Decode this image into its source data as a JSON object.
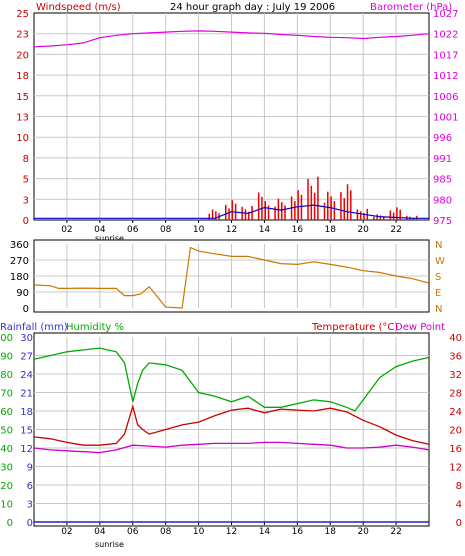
{
  "chart_data": [
    {
      "type": "line",
      "title": "24 hour graph day : July 19 2006",
      "left_axis_label": "Windspeed (m/s)",
      "right_axis_label": "Barometer (hPa)",
      "x_ticks": [
        "02",
        "04",
        "06",
        "08",
        "10",
        "12",
        "14",
        "16",
        "18",
        "20",
        "22"
      ],
      "x_extra_label": "sunrise",
      "y_left_ticks": [
        "0",
        "3",
        "5",
        "8",
        "10",
        "13",
        "15",
        "18",
        "20",
        "23",
        "25"
      ],
      "y_left_lim": [
        0,
        25
      ],
      "y_right_ticks": [
        "975",
        "980",
        "985",
        "991",
        "996",
        "1001",
        "1006",
        "1012",
        "1017",
        "1022",
        "1027"
      ],
      "y_right_lim": [
        975,
        1027
      ],
      "grid": true,
      "series": [
        {
          "name": "Barometer",
          "color": "#dd00dd",
          "axis": "right",
          "x": [
            0,
            1,
            2,
            3,
            4,
            5,
            6,
            7,
            8,
            9,
            10,
            11,
            12,
            13,
            14,
            15,
            16,
            17,
            18,
            19,
            20,
            21,
            22,
            23,
            24
          ],
          "y": [
            1018.5,
            1018.7,
            1019.0,
            1019.5,
            1020.8,
            1021.4,
            1021.8,
            1022.0,
            1022.2,
            1022.4,
            1022.5,
            1022.4,
            1022.2,
            1022.0,
            1021.9,
            1021.6,
            1021.4,
            1021.1,
            1020.9,
            1020.8,
            1020.6,
            1020.9,
            1021.1,
            1021.4,
            1021.8
          ]
        },
        {
          "name": "Wind average",
          "color": "#0000cc",
          "axis": "left",
          "x": [
            0,
            11,
            12,
            13,
            14,
            15,
            16,
            17,
            18,
            19,
            20,
            21,
            22,
            23,
            24
          ],
          "y": [
            0.2,
            0.2,
            1.0,
            0.8,
            1.5,
            1.2,
            1.6,
            1.8,
            1.5,
            1.0,
            0.7,
            0.4,
            0.3,
            0.2,
            0.2
          ]
        },
        {
          "name": "Wind gust",
          "color": "#ee0000",
          "axis": "left",
          "x": [
            11,
            12,
            13,
            14,
            15,
            16,
            17,
            18,
            19,
            20,
            21,
            22,
            23
          ],
          "y": [
            1.5,
            2.8,
            2.0,
            3.5,
            2.7,
            3.8,
            5.5,
            3.8,
            4.8,
            1.5,
            0.8,
            1.8,
            0.6
          ]
        }
      ]
    },
    {
      "type": "line",
      "title": "",
      "x_ticks": [
        "02",
        "04",
        "06",
        "08",
        "10",
        "12",
        "14",
        "16",
        "18",
        "20",
        "22"
      ],
      "y_left_ticks": [
        "0",
        "90",
        "180",
        "270",
        "360"
      ],
      "y_left_lim": [
        0,
        360
      ],
      "y_right_ticks": [
        "N",
        "E",
        "S",
        "W",
        "N"
      ],
      "grid": true,
      "series": [
        {
          "name": "Wind direction",
          "color": "#cc7700",
          "x": [
            0,
            1,
            1.5,
            2,
            3,
            4,
            5,
            5.5,
            6,
            6.5,
            7,
            8,
            9,
            9.5,
            10,
            11,
            12,
            13,
            14,
            15,
            16,
            17,
            18,
            19,
            20,
            21,
            22,
            23,
            24
          ],
          "y": [
            130,
            125,
            110,
            110,
            112,
            110,
            110,
            70,
            70,
            80,
            120,
            5,
            0,
            340,
            320,
            305,
            290,
            290,
            270,
            250,
            245,
            260,
            245,
            230,
            210,
            200,
            180,
            165,
            140
          ]
        }
      ]
    },
    {
      "type": "line",
      "title": "",
      "left_axis_labels": [
        "Rainfall (mm)",
        "Humidity %"
      ],
      "right_axis_labels": [
        "Temperature (°C)",
        "Dew Point"
      ],
      "x_ticks": [
        "02",
        "04",
        "06",
        "08",
        "10",
        "12",
        "14",
        "16",
        "18",
        "20",
        "22"
      ],
      "x_extra_label": "sunrise",
      "y_rain_ticks": [
        "0",
        "3",
        "6",
        "9",
        "12",
        "15",
        "18",
        "21",
        "24",
        "27",
        "30"
      ],
      "y_humidity_ticks": [
        "0",
        "10",
        "20",
        "30",
        "40",
        "50",
        "60",
        "70",
        "80",
        "90",
        "100"
      ],
      "y_temp_ticks": [
        "0",
        "4",
        "8",
        "12",
        "16",
        "20",
        "24",
        "28",
        "32",
        "36",
        "40"
      ],
      "y_temp_lim": [
        0,
        40
      ],
      "grid": true,
      "series": [
        {
          "name": "Humidity",
          "color": "#00aa00",
          "axis": "humidity",
          "x": [
            0,
            1,
            2,
            3,
            4,
            5,
            5.5,
            6,
            6.3,
            6.6,
            7,
            8,
            9,
            10,
            11,
            12,
            13,
            14,
            15,
            16,
            17,
            18,
            19,
            19.5,
            20,
            21,
            22,
            23,
            24
          ],
          "y": [
            88,
            90,
            92,
            93,
            94,
            92,
            86,
            65,
            75,
            82,
            86,
            85,
            82,
            70,
            68,
            65,
            68,
            62,
            62,
            64,
            66,
            65,
            62,
            60,
            66,
            78,
            84,
            87,
            89
          ]
        },
        {
          "name": "Temperature",
          "color": "#cc0000",
          "axis": "temp",
          "x": [
            0,
            1,
            2,
            3,
            4,
            5,
            5.5,
            6,
            6.3,
            6.6,
            7,
            8,
            9,
            10,
            11,
            12,
            13,
            14,
            15,
            16,
            17,
            18,
            19,
            20,
            21,
            22,
            23,
            24
          ],
          "y": [
            18.4,
            18.0,
            17.2,
            16.6,
            16.6,
            17.0,
            19.0,
            25.0,
            21.0,
            20.0,
            19.0,
            20.0,
            21.0,
            21.6,
            23.0,
            24.2,
            24.6,
            23.6,
            24.4,
            24.2,
            24.0,
            24.6,
            23.8,
            22.0,
            20.6,
            18.8,
            17.6,
            16.8
          ]
        },
        {
          "name": "Dew Point",
          "color": "#cc00cc",
          "axis": "temp",
          "x": [
            0,
            1,
            2,
            3,
            4,
            5,
            6,
            7,
            8,
            9,
            10,
            11,
            12,
            13,
            14,
            15,
            16,
            17,
            18,
            19,
            20,
            21,
            22,
            23,
            24
          ],
          "y": [
            16.0,
            15.6,
            15.4,
            15.2,
            15.0,
            15.6,
            16.6,
            16.4,
            16.2,
            16.6,
            16.8,
            17.0,
            17.0,
            17.0,
            17.2,
            17.2,
            17.0,
            16.8,
            16.6,
            16.0,
            16.0,
            16.2,
            16.6,
            16.2,
            15.6
          ]
        },
        {
          "name": "Rainfall",
          "color": "#2222cc",
          "axis": "rain",
          "x": [
            0,
            24
          ],
          "y": [
            0,
            0
          ]
        }
      ]
    }
  ]
}
